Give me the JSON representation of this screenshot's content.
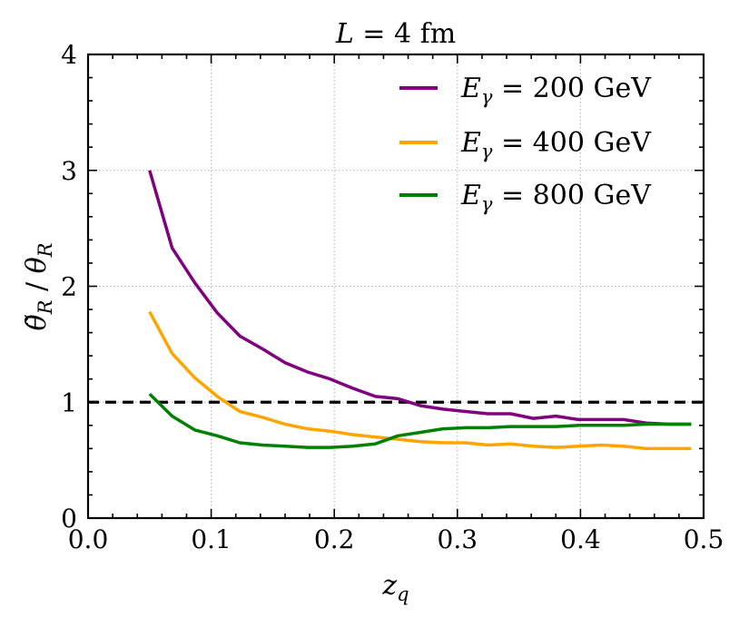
{
  "chart_data": {
    "type": "line",
    "title": "L = 4 fm",
    "title_parts": {
      "var": "L",
      "rest": " = 4 fm"
    },
    "xlabel": "z_q",
    "xlabel_parts": {
      "base": "z",
      "sub": "q"
    },
    "ylabel": "θ̃_R / θ_R",
    "ylabel_parts": {
      "num_base": "θ̃",
      "num_sub": "R",
      "sep": " / ",
      "den_base": "θ",
      "den_sub": "R"
    },
    "xlim": [
      0.0,
      0.5
    ],
    "ylim": [
      0,
      4
    ],
    "xticks": [
      0.0,
      0.1,
      0.2,
      0.3,
      0.4,
      0.5
    ],
    "xtick_labels": [
      "0.0",
      "0.1",
      "0.2",
      "0.3",
      "0.4",
      "0.5"
    ],
    "yticks": [
      0,
      1,
      2,
      3,
      4
    ],
    "ytick_labels": [
      "0",
      "1",
      "2",
      "3",
      "4"
    ],
    "x_minor_step": 0.02,
    "y_minor_step": 0.2,
    "grid": true,
    "reference_line": {
      "y": 1.0,
      "style": "dashed",
      "color": "#000000"
    },
    "legend_position": "top-right",
    "x": [
      0.05,
      0.0683,
      0.0867,
      0.105,
      0.1233,
      0.1417,
      0.16,
      0.1783,
      0.1967,
      0.215,
      0.2333,
      0.2517,
      0.27,
      0.2883,
      0.3067,
      0.325,
      0.3433,
      0.3617,
      0.38,
      0.3983,
      0.4167,
      0.435,
      0.4533,
      0.4717,
      0.49
    ],
    "series": [
      {
        "name": "E_γ = 200 GeV",
        "label_parts": {
          "base": "E",
          "sub": "γ",
          "rest": " = 200 GeV"
        },
        "color": "#800080",
        "values": [
          3.0,
          2.33,
          2.03,
          1.77,
          1.57,
          1.46,
          1.34,
          1.26,
          1.2,
          1.12,
          1.05,
          1.03,
          0.97,
          0.94,
          0.92,
          0.9,
          0.9,
          0.86,
          0.88,
          0.85,
          0.85,
          0.85,
          0.82,
          0.81,
          0.81
        ]
      },
      {
        "name": "E_γ = 400 GeV",
        "label_parts": {
          "base": "E",
          "sub": "γ",
          "rest": " = 400 GeV"
        },
        "color": "#FFA500",
        "values": [
          1.78,
          1.42,
          1.21,
          1.05,
          0.92,
          0.87,
          0.81,
          0.77,
          0.75,
          0.72,
          0.7,
          0.68,
          0.66,
          0.65,
          0.65,
          0.63,
          0.64,
          0.62,
          0.61,
          0.62,
          0.63,
          0.62,
          0.6,
          0.6,
          0.6
        ]
      },
      {
        "name": "E_γ = 800 GeV",
        "label_parts": {
          "base": "E",
          "sub": "γ",
          "rest": " = 800 GeV"
        },
        "color": "#008000",
        "values": [
          1.07,
          0.88,
          0.76,
          0.71,
          0.65,
          0.63,
          0.62,
          0.61,
          0.61,
          0.62,
          0.64,
          0.71,
          0.74,
          0.77,
          0.78,
          0.78,
          0.79,
          0.79,
          0.79,
          0.8,
          0.8,
          0.8,
          0.81,
          0.81,
          0.81
        ]
      }
    ]
  }
}
